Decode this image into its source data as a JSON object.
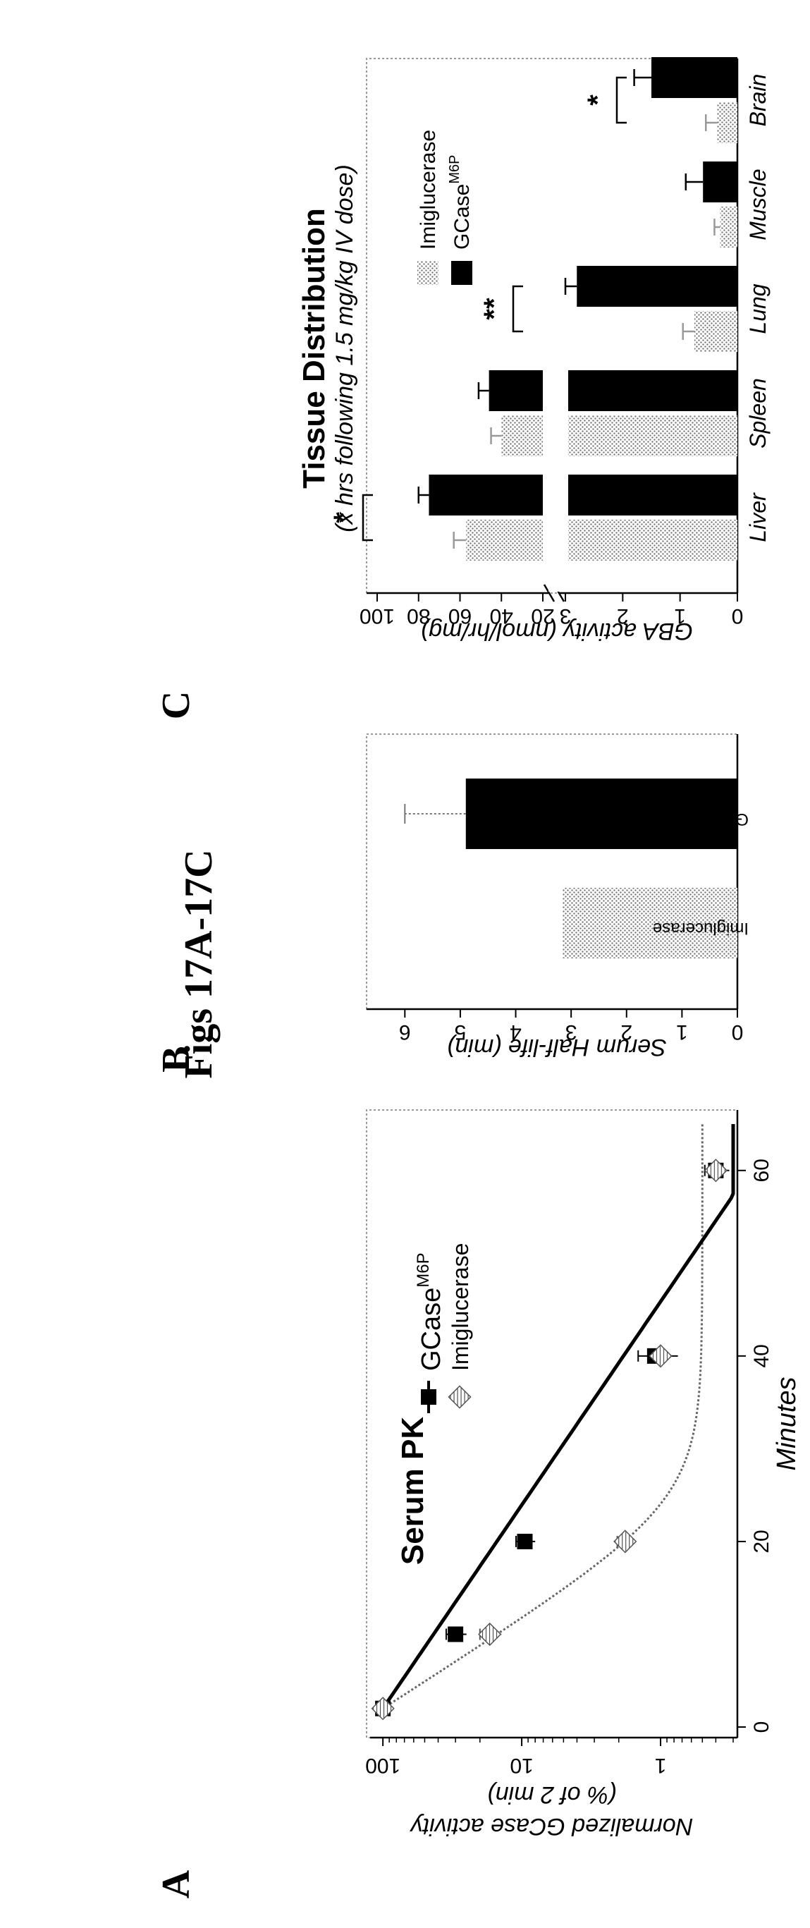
{
  "figure_title": "Figs 17A-17C",
  "panel_labels": [
    "A",
    "B",
    "C"
  ],
  "chart_data": [
    {
      "panel": "A",
      "type": "line",
      "title": "Serum PK",
      "xlabel": "Minutes",
      "ylabel_line1": "Normalized GCase activity",
      "ylabel_line2": "(% of 2 min)",
      "yscale": "log",
      "xlim": [
        0,
        65
      ],
      "ylim": [
        0.3,
        110
      ],
      "xticks": [
        "0",
        "20",
        "40",
        "60"
      ],
      "yticks": [
        "100",
        "10",
        "1"
      ],
      "legend_position": "top-right",
      "legend": [
        {
          "name": "GCase",
          "superscript": "M6P"
        },
        {
          "name": "Imiglucerase",
          "superscript": ""
        }
      ],
      "series": [
        {
          "name": "GCase M6P",
          "marker": "square-solid",
          "color": "#000000",
          "points": [
            {
              "x": 2,
              "y": 100,
              "err": 0
            },
            {
              "x": 10,
              "y": 30,
              "err": 5
            },
            {
              "x": 20,
              "y": 9.5,
              "err": 1.5
            },
            {
              "x": 40,
              "y": 1.1,
              "err": 0.35
            },
            {
              "x": 60,
              "y": 0.4,
              "err": 0.08
            }
          ]
        },
        {
          "name": "Imiglucerase",
          "marker": "hatched-diamond",
          "color": "#555555",
          "points": [
            {
              "x": 2,
              "y": 100,
              "err": 0
            },
            {
              "x": 10,
              "y": 17,
              "err": 3
            },
            {
              "x": 20,
              "y": 1.8,
              "err": 0.25
            },
            {
              "x": 40,
              "y": 1.0,
              "err": 0
            },
            {
              "x": 60,
              "y": 0.4,
              "err": 0
            }
          ]
        }
      ]
    },
    {
      "panel": "B",
      "type": "bar",
      "ylabel": "Serum Half-life (min)",
      "ylim": [
        0,
        6.5
      ],
      "yticks": [
        "0",
        "1",
        "2",
        "3",
        "4",
        "5",
        "6"
      ],
      "categories": [
        "Imiglucerase",
        "GCase M6P"
      ],
      "values": [
        3.15,
        4.9
      ],
      "errors": [
        0,
        1.1
      ],
      "bar_fills": [
        "dotted-gray",
        "solid-black"
      ]
    },
    {
      "panel": "C",
      "type": "bar",
      "title": "Tissue Distribution",
      "subtitle": "(x hrs following 1.5 mg/kg IV dose)",
      "ylabel": "GBA activity (nmol/hr/mg)",
      "yaxis_break": "broken axis (0-3 and 20-100)",
      "yticks_lower": [
        "0",
        "1",
        "2",
        "3"
      ],
      "yticks_upper": [
        "20",
        "40",
        "60",
        "80",
        "100"
      ],
      "categories": [
        "Liver",
        "Spleen",
        "Lung",
        "Muscle",
        "Brain"
      ],
      "legend_position": "top-right",
      "legend": [
        {
          "name": "Imiglucerase",
          "superscript": "",
          "fill": "dotted-gray"
        },
        {
          "name": "GCase",
          "superscript": "M6P",
          "fill": "solid-black"
        }
      ],
      "series": [
        {
          "name": "Imiglucerase",
          "values": [
            57,
            40,
            0.75,
            0.3,
            0.35
          ],
          "errors": [
            6,
            5,
            0.2,
            0.1,
            0.2
          ]
        },
        {
          "name": "GCase M6P",
          "values": [
            75,
            46,
            2.8,
            0.6,
            1.5
          ],
          "errors": [
            5,
            5,
            0.2,
            0.3,
            0.3
          ]
        }
      ],
      "significance": [
        {
          "category": "Liver",
          "label": "*"
        },
        {
          "category": "Lung",
          "label": "**"
        },
        {
          "category": "Brain",
          "label": "*"
        }
      ]
    }
  ]
}
